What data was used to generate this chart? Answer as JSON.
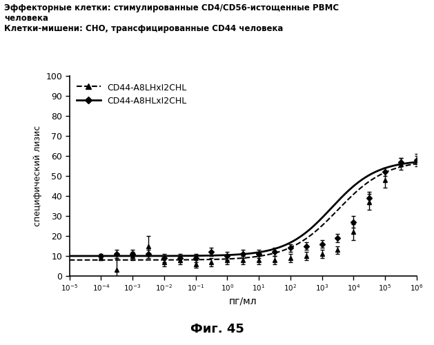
{
  "title_line1": "Эффекторные клетки: стимулированные CD4/CD56-истощенные PBMC",
  "title_line2": "человека",
  "title_line3": "Клетки-мишени: CHO, трансфицированные CD44 человека",
  "ylabel": "специфический лизис",
  "xlabel": "пг/мл",
  "fig_label": "Фиг. 45",
  "ylim": [
    0,
    100
  ],
  "yticks": [
    0,
    10,
    20,
    30,
    40,
    50,
    60,
    70,
    80,
    90,
    100
  ],
  "xtick_positions": [
    -5,
    -4,
    -3,
    -2,
    -1,
    0,
    1,
    2,
    3,
    4,
    5,
    6
  ],
  "series1_label": "CD44-A8LHxI2CHL",
  "series2_label": "CD44-A8HLxI2CHL",
  "background_color": "#ffffff",
  "series1_x": [
    -4,
    -3.5,
    -3,
    -2.5,
    -2,
    -1.5,
    -1,
    -0.5,
    0,
    0.5,
    1,
    1.5,
    2,
    2.5,
    3,
    3.5,
    4,
    4.5,
    5,
    5.5,
    6
  ],
  "series1_y": [
    9,
    3,
    10,
    15,
    7,
    8,
    6,
    7,
    8,
    8,
    8,
    8,
    9,
    10,
    11,
    13,
    22,
    37,
    48,
    56,
    58
  ],
  "series1_yerr": [
    1,
    6,
    2,
    5,
    2,
    2,
    2,
    2,
    2,
    2,
    2,
    2,
    2,
    2,
    2,
    2,
    4,
    4,
    4,
    3,
    3
  ],
  "series2_x": [
    -4,
    -3.5,
    -3,
    -2.5,
    -2,
    -1.5,
    -1,
    -0.5,
    0,
    0.5,
    1,
    1.5,
    2,
    2.5,
    3,
    3.5,
    4,
    4.5,
    5,
    5.5,
    6
  ],
  "series2_y": [
    10,
    11,
    11,
    11,
    9,
    9,
    9,
    12,
    10,
    11,
    11,
    12,
    14,
    15,
    16,
    19,
    27,
    39,
    52,
    57,
    58
  ],
  "series2_yerr": [
    1,
    2,
    2,
    2,
    2,
    2,
    2,
    2,
    2,
    2,
    2,
    2,
    2,
    2,
    2,
    2,
    3,
    3,
    2,
    2,
    2
  ],
  "sig1_x0": 3.5,
  "sig1_k": 1.3,
  "sig1_ymin": 8.0,
  "sig1_ymax": 58.0,
  "sig2_x0": 3.3,
  "sig2_k": 1.4,
  "sig2_ymin": 10.0,
  "sig2_ymax": 58.0
}
